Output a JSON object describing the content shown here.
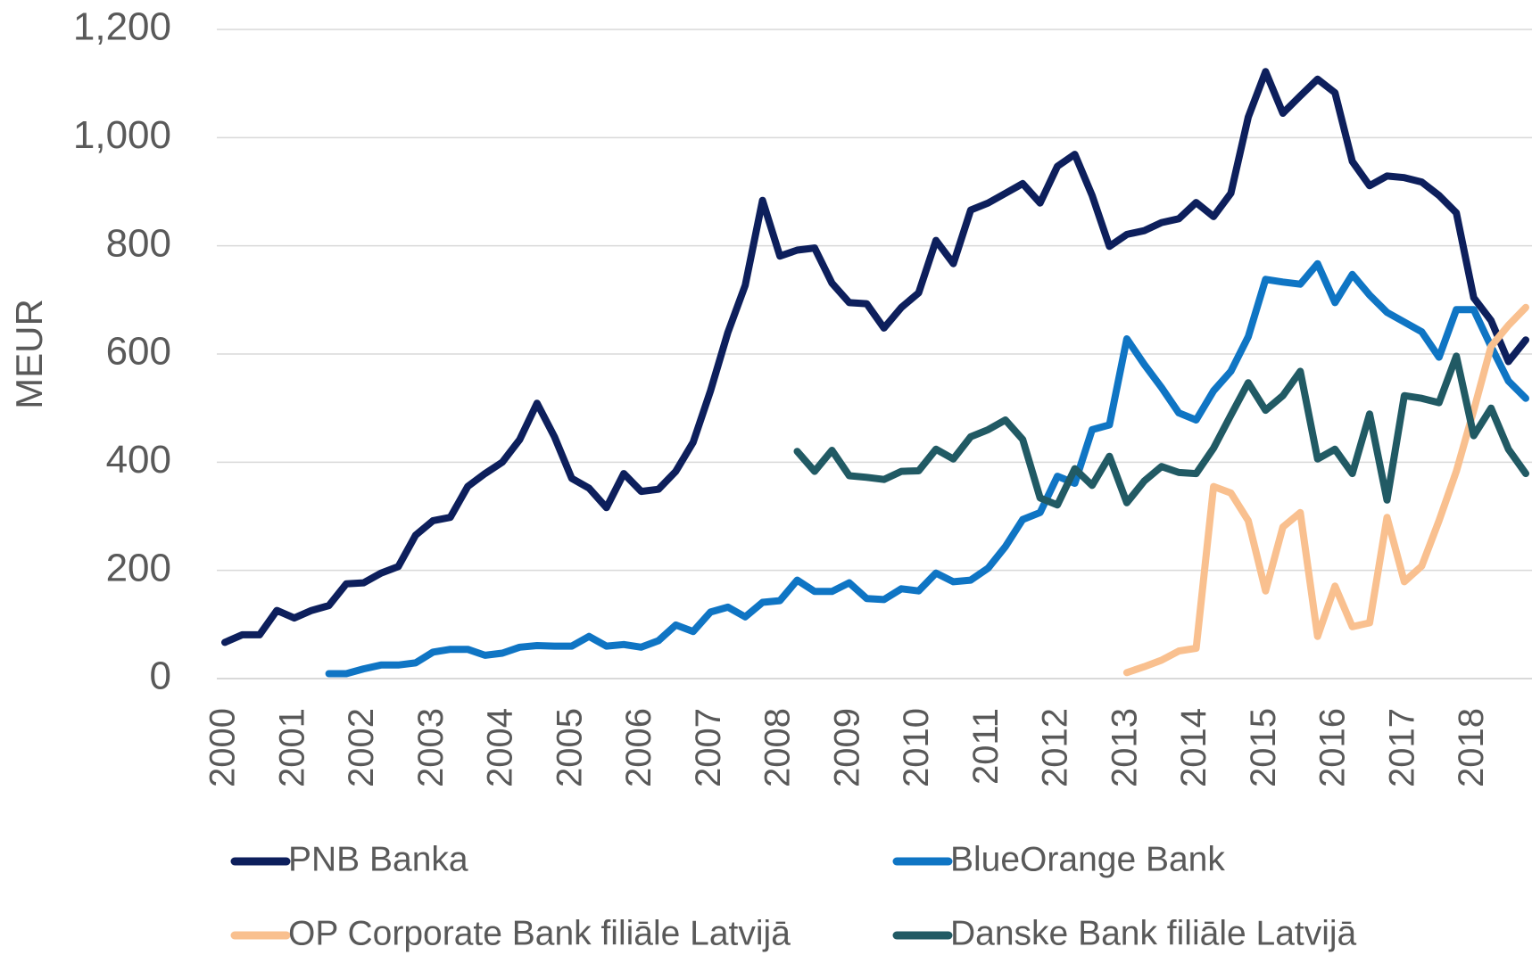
{
  "chart_data": {
    "type": "line",
    "y_label": "MEUR",
    "categories": [
      "2000",
      null,
      null,
      null,
      "2001",
      null,
      null,
      null,
      "2002",
      null,
      null,
      null,
      "2003",
      null,
      null,
      null,
      "2004",
      null,
      null,
      null,
      "2005",
      null,
      null,
      null,
      "2006",
      null,
      null,
      null,
      "2007",
      null,
      null,
      null,
      "2008",
      null,
      null,
      null,
      "2009",
      null,
      null,
      null,
      "2010",
      null,
      null,
      null,
      "2011",
      null,
      null,
      null,
      "2012",
      null,
      null,
      null,
      "2013",
      null,
      null,
      null,
      "2014",
      null,
      null,
      null,
      "2015",
      null,
      null,
      null,
      "2016",
      null,
      null,
      null,
      "2017",
      null,
      null,
      null,
      "2018",
      null,
      null,
      null
    ],
    "ylim": [
      0,
      1200
    ],
    "yticks": [
      0,
      200,
      400,
      600,
      800,
      {
        "value": 1000,
        "label": "1,000"
      },
      {
        "value": 1200,
        "label": "1,200"
      }
    ],
    "grid": true,
    "legend": "bottom",
    "series": [
      {
        "name": "PNB Banka",
        "color": "#0d1f5c",
        "values": [
          67,
          81,
          81,
          126,
          112,
          126,
          135,
          175,
          177,
          195,
          207,
          265,
          292,
          298,
          355,
          379,
          400,
          442,
          509,
          447,
          370,
          352,
          316,
          379,
          346,
          350,
          383,
          437,
          532,
          640,
          727,
          884,
          781,
          792,
          796,
          731,
          695,
          693,
          648,
          686,
          713,
          810,
          767,
          866,
          879,
          897,
          915,
          879,
          947,
          969,
          893,
          799,
          821,
          828,
          843,
          850,
          880,
          854,
          897,
          1038,
          1122,
          1045,
          1077,
          1108,
          1083,
          956,
          911,
          929,
          926,
          918,
          893,
          861,
          704,
          662,
          586,
          626
        ]
      },
      {
        "name": "BlueOrange Bank",
        "color": "#0f75c4",
        "values": [
          null,
          null,
          null,
          null,
          null,
          null,
          9,
          9,
          18,
          25,
          25,
          29,
          49,
          54,
          54,
          43,
          47,
          58,
          61,
          60,
          60,
          78,
          60,
          63,
          58,
          70,
          99,
          87,
          123,
          132,
          114,
          141,
          144,
          182,
          161,
          161,
          177,
          148,
          146,
          166,
          162,
          195,
          179,
          182,
          204,
          244,
          294,
          307,
          374,
          361,
          460,
          469,
          628,
          581,
          538,
          491,
          478,
          532,
          568,
          632,
          738,
          733,
          729,
          767,
          695,
          747,
          709,
          677,
          659,
          641,
          594,
          682,
          682,
          614,
          550,
          518
        ]
      },
      {
        "name": "OP Corporate Bank filiāle Latvijā",
        "color": "#f9c08f",
        "values": [
          null,
          null,
          null,
          null,
          null,
          null,
          null,
          null,
          null,
          null,
          null,
          null,
          null,
          null,
          null,
          null,
          null,
          null,
          null,
          null,
          null,
          null,
          null,
          null,
          null,
          null,
          null,
          null,
          null,
          null,
          null,
          null,
          null,
          null,
          null,
          null,
          null,
          null,
          null,
          null,
          null,
          null,
          null,
          null,
          null,
          null,
          null,
          null,
          null,
          null,
          null,
          null,
          11,
          22,
          34,
          51,
          56,
          355,
          343,
          292,
          162,
          280,
          307,
          78,
          171,
          96,
          103,
          298,
          179,
          208,
          292,
          383,
          496,
          614,
          653,
          686
        ]
      },
      {
        "name": "Danske Bank filiāle Latvijā",
        "color": "#215a64",
        "values": [
          null,
          null,
          null,
          null,
          null,
          null,
          null,
          null,
          null,
          null,
          null,
          null,
          null,
          null,
          null,
          null,
          null,
          null,
          null,
          null,
          null,
          null,
          null,
          null,
          null,
          null,
          null,
          null,
          null,
          null,
          null,
          null,
          null,
          420,
          383,
          422,
          375,
          372,
          368,
          383,
          384,
          424,
          406,
          447,
          460,
          478,
          442,
          334,
          321,
          388,
          357,
          411,
          325,
          365,
          392,
          381,
          379,
          426,
          487,
          547,
          496,
          523,
          568,
          406,
          424,
          379,
          489,
          330,
          523,
          518,
          510,
          596,
          449,
          500,
          424,
          379
        ]
      }
    ]
  }
}
